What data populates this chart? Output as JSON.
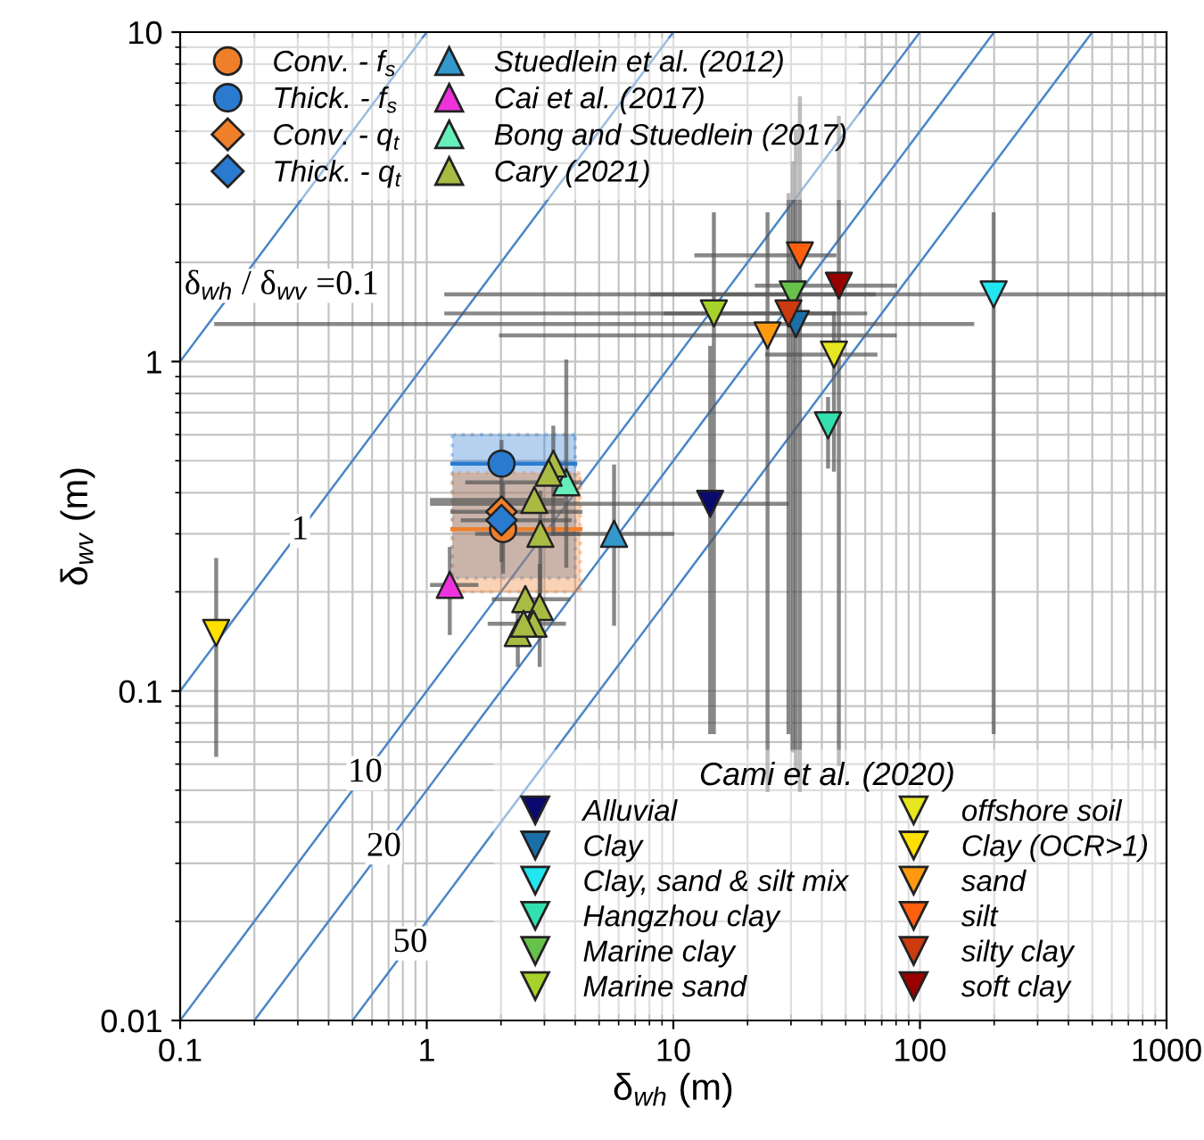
{
  "chart_data": {
    "type": "scatter",
    "log": "xy",
    "xlabel": "δ$_{wh}$ (m)",
    "ylabel": "δ$_{wv}$ (m)",
    "xlim": [
      0.1,
      1000
    ],
    "ylim": [
      0.01,
      10
    ],
    "xticks": [
      0.1,
      1,
      10,
      100,
      1000
    ],
    "yticks": [
      0.01,
      0.1,
      1,
      10
    ],
    "grid": true,
    "legend": "top left",
    "legend_title": "Cami et al. (2020)",
    "series": [
      {
        "type": "line",
        "name": "δ$_{wh}$ / δ$_{wv}$ =0.1",
        "color": "#4a86c8",
        "x": [
          0.1,
          1
        ],
        "values": [
          1,
          10
        ]
      },
      {
        "type": "line",
        "name": "1",
        "color": "#4a86c8",
        "x": [
          0.1,
          10
        ],
        "values": [
          0.1,
          10
        ]
      },
      {
        "type": "line",
        "name": "10",
        "color": "#4a86c8",
        "x": [
          0.1,
          100
        ],
        "values": [
          0.01,
          10
        ]
      },
      {
        "type": "line",
        "name": "20",
        "color": "#4a86c8",
        "x": [
          0.2,
          200
        ],
        "values": [
          0.01,
          10
        ]
      },
      {
        "type": "line",
        "name": "50",
        "color": "#4a86c8",
        "x": [
          0.5,
          500
        ],
        "values": [
          0.01,
          10
        ]
      },
      {
        "type": "line",
        "color": "#2a7bd0",
        "line_style": "solid",
        "x": [
          1.27,
          4.0
        ],
        "values": [
          0.49,
          0.49
        ],
        "lower": [
          0.22,
          0.22
        ],
        "upper": [
          0.6,
          0.6
        ]
      },
      {
        "type": "line",
        "color": "#f07f2a",
        "line_style": "solid",
        "x": [
          1.27,
          4.2
        ],
        "values": [
          0.31,
          0.31
        ],
        "lower": [
          0.2,
          0.2
        ],
        "upper": [
          0.46,
          0.46
        ]
      },
      {
        "name": "Conv. - f$_{s}$",
        "marker": "circle",
        "color": "#f07f2a",
        "x": [
          2.04
        ],
        "values": [
          0.31
        ],
        "errors": [
          [
            0.23,
            0.42
          ]
        ]
      },
      {
        "name": "Thick. - f$_{s}$",
        "marker": "circle",
        "color": "#2a7bd0",
        "x": [
          2.01
        ],
        "values": [
          0.49
        ],
        "errors": [
          [
            0.25,
            0.57
          ]
        ]
      },
      {
        "name": "Conv. - q$_{t}$",
        "marker": "diamond",
        "color": "#f07f2a",
        "x": [
          2.01
        ],
        "values": [
          0.35
        ],
        "xerrors": [
          [
            1.27,
            4.2
          ]
        ],
        "errors": [
          null
        ]
      },
      {
        "name": "Thick. - q$_{t}$",
        "marker": "diamond",
        "color": "#2a7bd0",
        "x": [
          2.01
        ],
        "values": [
          0.33
        ],
        "xerrors": [
          [
            1.4,
            3.8
          ]
        ],
        "errors": [
          null
        ]
      },
      {
        "name": "Stuedlein et al. (2012)",
        "marker": "triangle",
        "color": "#3399cc",
        "x": [
          5.75
        ],
        "values": [
          0.3
        ],
        "xerrors": [
          [
            3.26,
            9.9
          ]
        ],
        "errors": [
          [
            0.16,
            0.48
          ]
        ]
      },
      {
        "name": "Cai et al. (2017)",
        "marker": "triangle",
        "color": "#ee33dd",
        "x": [
          1.24
        ],
        "values": [
          0.21
        ],
        "xerrors": [
          [
            1.05,
            1.59
          ]
        ],
        "errors": [
          [
            0.15,
            0.27
          ]
        ]
      },
      {
        "name": "Bong and Stuedlein (2017)",
        "marker": "triangle",
        "color": "#66eebb",
        "x": [
          3.68
        ],
        "values": [
          0.43
        ],
        "xerrors": [
          [
            1.46,
            4.18
          ]
        ],
        "errors": [
          [
            0.24,
            1.0
          ]
        ]
      },
      {
        "name": "Cary (2021)",
        "marker": "triangle",
        "color": "#aabb44",
        "x": [
          3.26,
          3.12,
          2.73,
          2.89,
          2.51,
          2.87,
          2.71,
          2.34,
          2.47
        ],
        "values": [
          0.49,
          0.46,
          0.38,
          0.3,
          0.19,
          0.18,
          0.16,
          0.15,
          0.16
        ],
        "xerrors": [
          null,
          null,
          [
            1.05,
            3.55
          ],
          [
            1.6,
            4.1
          ],
          [
            1.87,
            3.75
          ],
          null,
          [
            1.8,
            3.6
          ],
          null,
          null
        ],
        "errors": [
          [
            0.3,
            0.63
          ],
          null,
          null,
          [
            0.2,
            0.4
          ],
          null,
          [
            0.12,
            0.24
          ],
          null,
          [
            0.12,
            0.18
          ],
          null
        ]
      },
      {
        "name": "Alluvial",
        "marker": "triangle_down",
        "color": "#0a0a6e",
        "x": [
          14.1
        ],
        "values": [
          0.37
        ],
        "xerrors": [
          [
            1.05,
            28.9
          ]
        ],
        "errors": [
          [
            0.075,
            1.1
          ]
        ]
      },
      {
        "name": "Clay",
        "marker": "triangle_down",
        "color": "#1a6fa8",
        "x": [
          31.4
        ],
        "values": [
          1.3
        ],
        "xerrors": [
          [
            0.14,
            163
          ]
        ],
        "errors": [
          [
            0.058,
            5.0
          ]
        ]
      },
      {
        "name": "Clay, sand & silt mix",
        "marker": "triangle_down",
        "color": "#22e6f0",
        "x": [
          199
        ],
        "values": [
          1.6
        ],
        "xerrors": [
          [
            1.2,
            1000
          ]
        ],
        "errors": [
          [
            0.075,
            2.8
          ]
        ]
      },
      {
        "name": "Hangzhou clay",
        "marker": "triangle_down",
        "color": "#33e0b0",
        "x": [
          42.4
        ],
        "values": [
          0.64
        ],
        "xerrors": [
          null
        ],
        "errors": [
          [
            0.48,
            0.77
          ]
        ]
      },
      {
        "name": "Marine clay",
        "marker": "triangle_down",
        "color": "#66c24a",
        "x": [
          30.5
        ],
        "values": [
          1.6
        ],
        "xerrors": [
          [
            8.2,
            65
          ]
        ],
        "errors": [
          [
            0.066,
            4.0
          ]
        ]
      },
      {
        "name": "Marine sand",
        "marker": "triangle_down",
        "color": "#a6d22a",
        "x": [
          14.6
        ],
        "values": [
          1.4
        ],
        "xerrors": [
          [
            1.2,
            60
          ]
        ],
        "errors": [
          [
            0.075,
            2.8
          ]
        ]
      },
      {
        "name": "offshore soil",
        "marker": "triangle_down",
        "color": "#e6e620",
        "x": [
          44.8
        ],
        "values": [
          1.05
        ],
        "xerrors": [
          [
            24,
            66
          ]
        ],
        "errors": [
          [
            0.47,
            1.4
          ]
        ]
      },
      {
        "name": "Clay (OCR>1)",
        "marker": "triangle_down",
        "color": "#ffe000",
        "x": [
          0.14
        ],
        "values": [
          0.15
        ],
        "xerrors": [
          null
        ],
        "errors": [
          [
            0.064,
            0.25
          ]
        ]
      },
      {
        "name": "sand",
        "marker": "triangle_down",
        "color": "#ff9a10",
        "x": [
          24.1
        ],
        "values": [
          1.2
        ],
        "xerrors": [
          [
            2,
            79
          ]
        ],
        "errors": [
          [
            0.05,
            2.8
          ]
        ]
      },
      {
        "name": "silt",
        "marker": "triangle_down",
        "color": "#ff6010",
        "x": [
          32.6
        ],
        "values": [
          2.1
        ],
        "xerrors": [
          [
            12.4,
            45
          ]
        ],
        "errors": [
          [
            0.05,
            6.3
          ]
        ]
      },
      {
        "name": "silty clay",
        "marker": "triangle_down",
        "color": "#cc3a10",
        "x": [
          29.3
        ],
        "values": [
          1.4
        ],
        "xerrors": [
          [
            9.3,
            44.6
          ]
        ],
        "errors": [
          [
            0.075,
            3.2
          ]
        ]
      },
      {
        "name": "soft clay",
        "marker": "triangle_down",
        "color": "#990000",
        "x": [
          46.9
        ],
        "values": [
          1.7
        ],
        "xerrors": [
          [
            21.8,
            79.3
          ]
        ],
        "errors": [
          [
            0.06,
            5.5
          ]
        ]
      }
    ]
  }
}
